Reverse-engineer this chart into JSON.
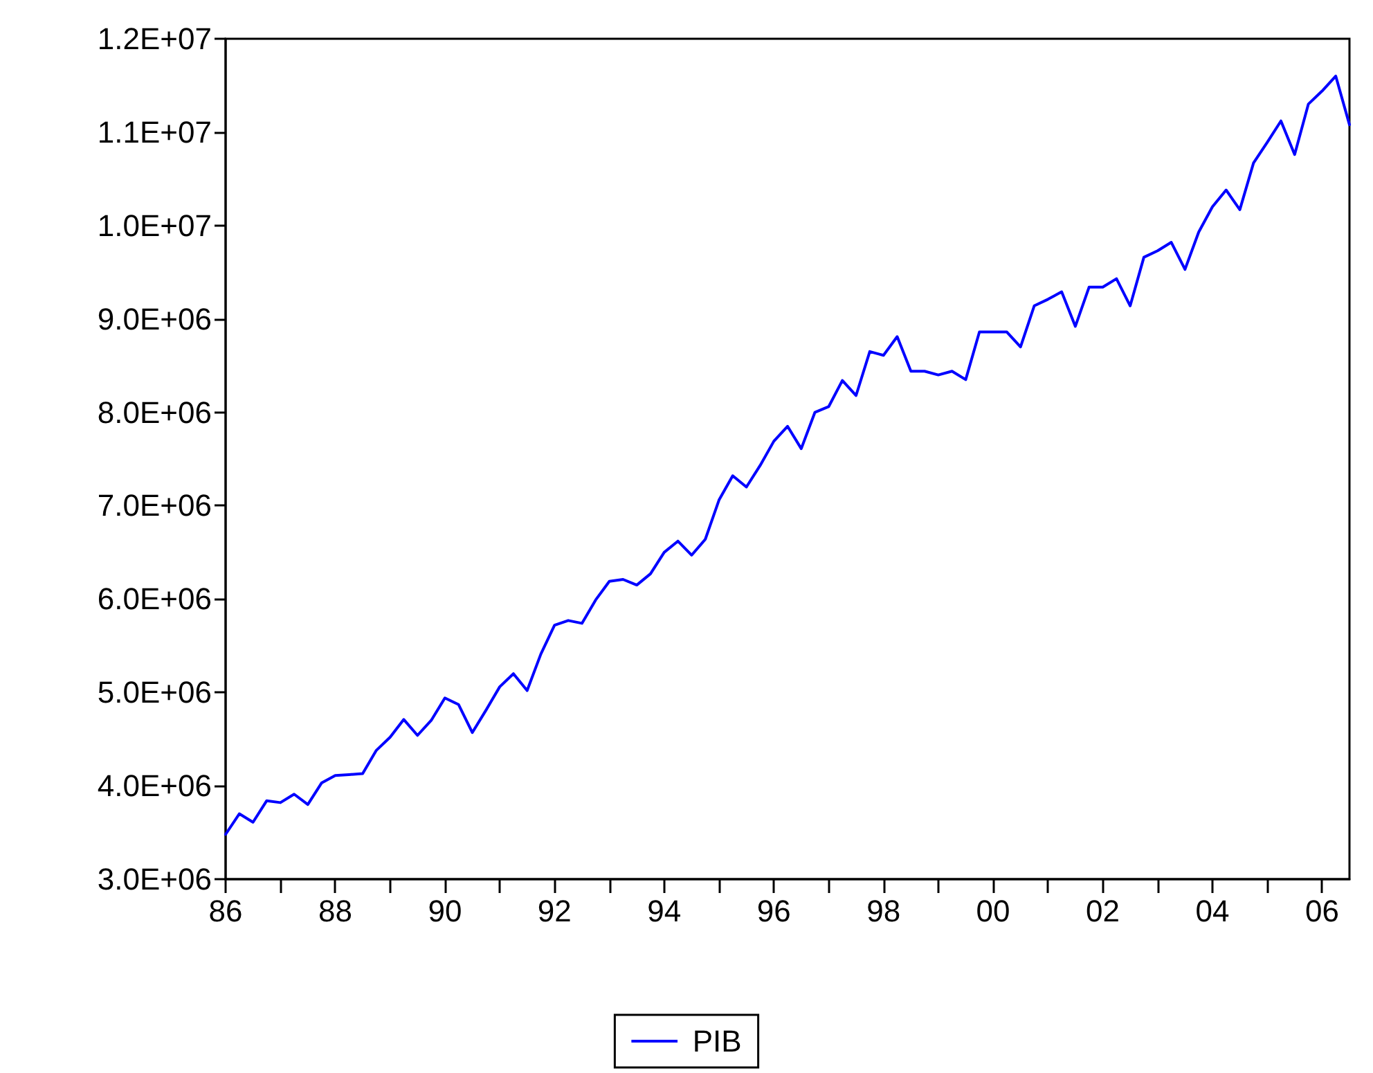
{
  "chart_data": {
    "type": "line",
    "categories": [
      "86",
      null,
      null,
      null,
      null,
      null,
      null,
      null,
      "88",
      null,
      null,
      null,
      null,
      null,
      null,
      null,
      "90",
      null,
      null,
      null,
      null,
      null,
      null,
      null,
      "92",
      null,
      null,
      null,
      null,
      null,
      null,
      null,
      "94",
      null,
      null,
      null,
      null,
      null,
      null,
      null,
      "96",
      null,
      null,
      null,
      null,
      null,
      null,
      null,
      "98",
      null,
      null,
      null,
      null,
      null,
      null,
      null,
      "00",
      null,
      null,
      null,
      null,
      null,
      null,
      null,
      "02",
      null,
      null,
      null,
      null,
      null,
      null,
      null,
      "04",
      null,
      null,
      null,
      null,
      null,
      null,
      null,
      "06",
      null,
      null
    ],
    "series": [
      {
        "name": "PIB",
        "color": "#0000ff",
        "values": [
          3480000,
          3700000,
          3610000,
          3840000,
          3820000,
          3910000,
          3800000,
          4030000,
          4110000,
          4120000,
          4130000,
          4380000,
          4520000,
          4710000,
          4540000,
          4700000,
          4940000,
          4870000,
          4570000,
          4810000,
          5060000,
          5200000,
          5020000,
          5410000,
          5720000,
          5770000,
          5740000,
          5990000,
          6190000,
          6210000,
          6150000,
          6270000,
          6500000,
          6620000,
          6470000,
          6640000,
          7060000,
          7320000,
          7200000,
          7430000,
          7690000,
          7850000,
          7610000,
          8000000,
          8060000,
          8340000,
          8180000,
          8650000,
          8610000,
          8810000,
          8440000,
          8440000,
          8400000,
          8440000,
          8350000,
          8860000,
          8860000,
          8860000,
          8700000,
          9140000,
          9210000,
          9290000,
          8920000,
          9340000,
          9340000,
          9430000,
          9140000,
          9660000,
          9730000,
          9820000,
          9530000,
          9930000,
          10200000,
          10380000,
          10170000,
          10670000,
          10890000,
          11120000,
          10760000,
          11300000,
          11440000,
          11600000,
          11080000
        ]
      }
    ],
    "ylim": [
      3000000,
      12000000
    ],
    "yticks": [
      {
        "value": 3000000,
        "label": "3.0E+06"
      },
      {
        "value": 4000000,
        "label": "4.0E+06"
      },
      {
        "value": 5000000,
        "label": "5.0E+06"
      },
      {
        "value": 6000000,
        "label": "6.0E+06"
      },
      {
        "value": 7000000,
        "label": "7.0E+06"
      },
      {
        "value": 8000000,
        "label": "8.0E+06"
      },
      {
        "value": 9000000,
        "label": "9.0E+06"
      },
      {
        "value": 10000000,
        "label": "1.0E+07"
      },
      {
        "value": 11000000,
        "label": "1.1E+07"
      },
      {
        "value": 12000000,
        "label": "1.2E+07"
      }
    ],
    "grid": false,
    "legend": "bottom",
    "marker": "none",
    "line_style": "solid"
  }
}
